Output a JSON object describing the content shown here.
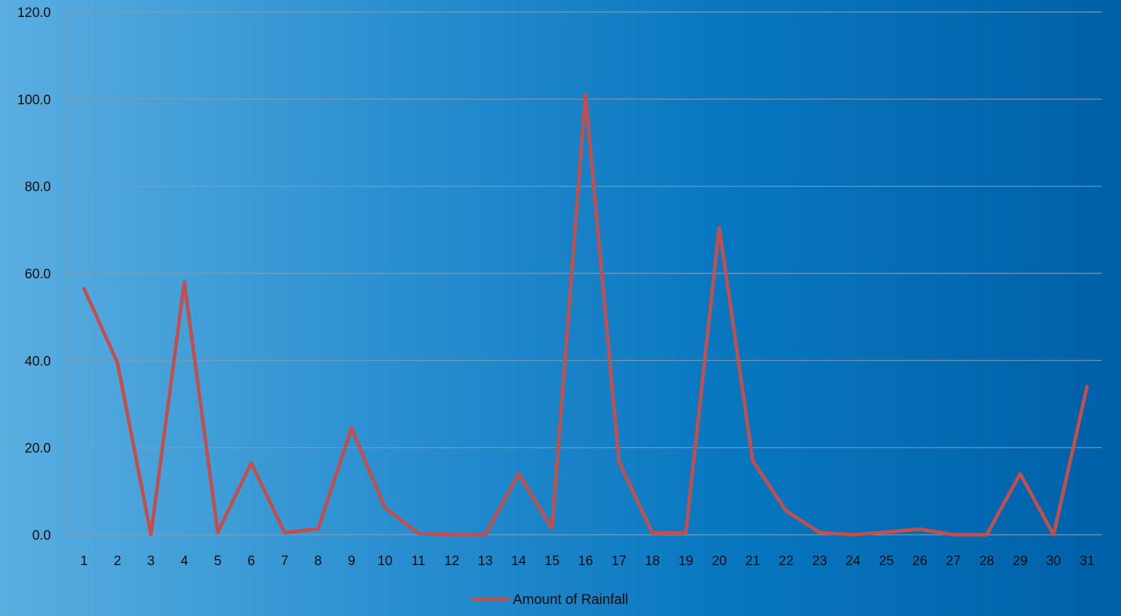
{
  "chart_data": {
    "type": "line",
    "x": [
      1,
      2,
      3,
      4,
      5,
      6,
      7,
      8,
      9,
      10,
      11,
      12,
      13,
      14,
      15,
      16,
      17,
      18,
      19,
      20,
      21,
      22,
      23,
      24,
      25,
      26,
      27,
      28,
      29,
      30,
      31
    ],
    "series": [
      {
        "name": "Amount of Rainfall",
        "color": "#c0504d",
        "values": [
          56.5,
          39.5,
          0.0,
          58.0,
          0.5,
          16.5,
          0.5,
          1.3,
          24.5,
          6.2,
          0.3,
          0.0,
          0.0,
          14.0,
          1.5,
          101.0,
          16.8,
          0.4,
          0.4,
          70.5,
          17.0,
          5.5,
          0.5,
          0.0,
          0.6,
          1.3,
          0.0,
          0.0,
          14.0,
          0.0,
          34.0
        ]
      }
    ],
    "yticks": [
      "0.0",
      "20.0",
      "40.0",
      "60.0",
      "80.0",
      "100.0",
      "120.0"
    ],
    "ylim": [
      0,
      120
    ],
    "grid": true,
    "legend": "bottom"
  }
}
